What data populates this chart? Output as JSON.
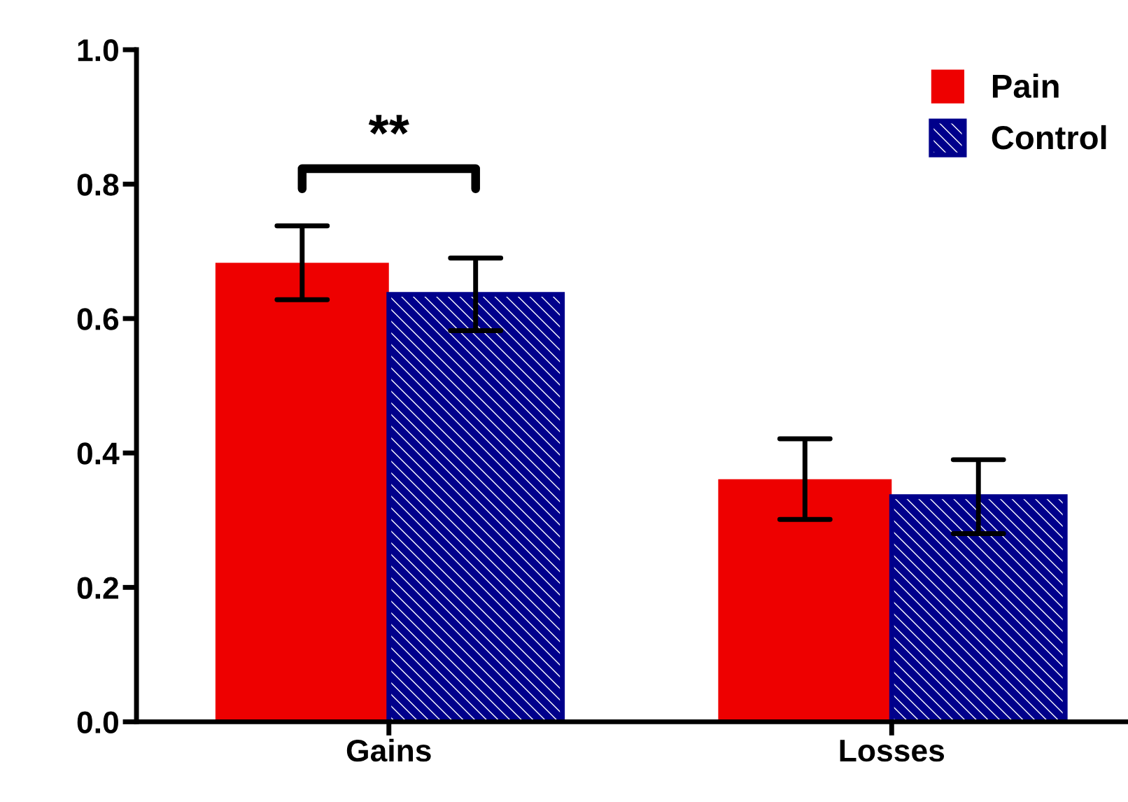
{
  "chart_data": {
    "type": "bar",
    "categories": [
      "Gains",
      "Losses"
    ],
    "series": [
      {
        "name": "Pain",
        "color": "#ee0000",
        "values": [
          0.683,
          0.361
        ],
        "errors": [
          0.055,
          0.06
        ]
      },
      {
        "name": "Control",
        "color": "#00008b",
        "values": [
          0.636,
          0.335
        ],
        "errors": [
          0.054,
          0.055
        ]
      }
    ],
    "ylim": [
      0,
      1.0
    ],
    "yticks": [
      {
        "value": 0,
        "label": "0.0"
      },
      {
        "value": 0.2,
        "label": "0.2"
      },
      {
        "value": 0.4,
        "label": "0.4"
      },
      {
        "value": 0.6,
        "label": "0.6"
      },
      {
        "value": 0.8,
        "label": "0.8"
      },
      {
        "value": 1.0,
        "label": "1.0"
      }
    ],
    "annotations": [
      "**"
    ],
    "legend": "top right",
    "grid": false
  }
}
